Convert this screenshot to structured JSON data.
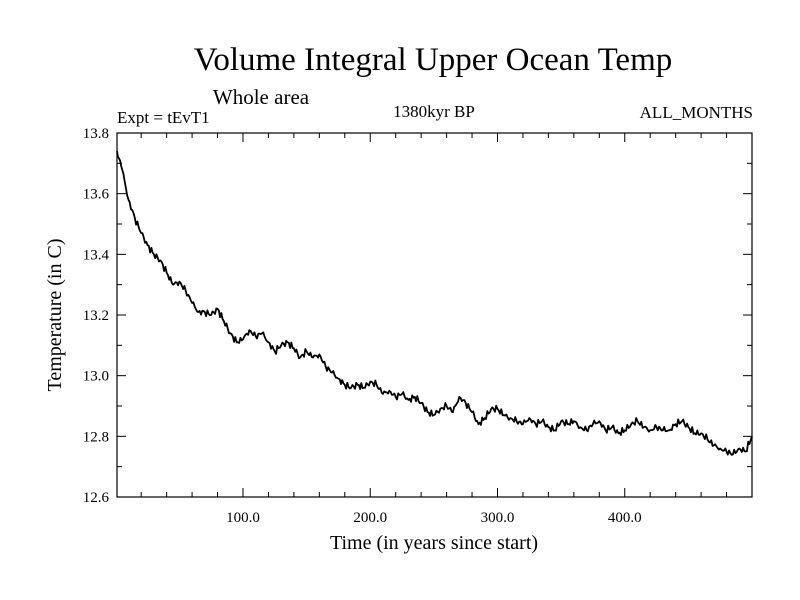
{
  "chart_data": {
    "type": "line",
    "title": "Volume Integral Upper Ocean Temp",
    "subtitle": "Whole area",
    "left_label": "Expt = tEvT1",
    "center_label": "1380kyr BP",
    "right_label": "ALL_MONTHS",
    "xlabel": "Time (in years since start)",
    "ylabel": "Temperature (in C)",
    "xlim": [
      1,
      500
    ],
    "ylim": [
      12.6,
      13.8
    ],
    "x_ticks": [
      {
        "value": 100,
        "label": "100.0"
      },
      {
        "value": 200,
        "label": "200.0"
      },
      {
        "value": 300,
        "label": "300.0"
      },
      {
        "value": 400,
        "label": "400.0"
      }
    ],
    "y_ticks": [
      {
        "value": 12.6,
        "label": "12.6"
      },
      {
        "value": 12.8,
        "label": "12.8"
      },
      {
        "value": 13.0,
        "label": "13.0"
      },
      {
        "value": 13.2,
        "label": "13.2"
      },
      {
        "value": 13.4,
        "label": "13.4"
      },
      {
        "value": 13.6,
        "label": "13.6"
      },
      {
        "value": 13.8,
        "label": "13.8"
      }
    ],
    "grid": false,
    "series": [
      {
        "name": "Volume Integral Upper Ocean Temp",
        "x": [
          1,
          5,
          10,
          15,
          20,
          25,
          30,
          35,
          40,
          45,
          50,
          55,
          60,
          65,
          70,
          75,
          80,
          85,
          90,
          95,
          100,
          105,
          110,
          115,
          120,
          125,
          130,
          135,
          140,
          145,
          150,
          155,
          160,
          165,
          170,
          175,
          180,
          185,
          190,
          195,
          200,
          205,
          210,
          215,
          220,
          225,
          230,
          235,
          240,
          245,
          250,
          255,
          260,
          265,
          270,
          275,
          280,
          285,
          290,
          295,
          300,
          305,
          310,
          315,
          320,
          325,
          330,
          335,
          340,
          345,
          350,
          355,
          360,
          365,
          370,
          375,
          380,
          385,
          390,
          395,
          400,
          405,
          410,
          415,
          420,
          425,
          430,
          435,
          440,
          445,
          450,
          455,
          460,
          465,
          470,
          475,
          480,
          485,
          490,
          495,
          500
        ],
        "values": [
          13.74,
          13.68,
          13.58,
          13.52,
          13.47,
          13.43,
          13.4,
          13.38,
          13.34,
          13.3,
          13.31,
          13.28,
          13.24,
          13.21,
          13.21,
          13.2,
          13.22,
          13.18,
          13.14,
          13.11,
          13.12,
          13.15,
          13.13,
          13.14,
          13.11,
          13.08,
          13.1,
          13.11,
          13.09,
          13.06,
          13.08,
          13.06,
          13.07,
          13.03,
          13.01,
          12.99,
          12.97,
          12.96,
          12.97,
          12.96,
          12.98,
          12.97,
          12.94,
          12.95,
          12.93,
          12.94,
          12.92,
          12.93,
          12.91,
          12.88,
          12.87,
          12.89,
          12.9,
          12.88,
          12.93,
          12.91,
          12.88,
          12.84,
          12.86,
          12.89,
          12.89,
          12.87,
          12.86,
          12.85,
          12.84,
          12.86,
          12.84,
          12.85,
          12.83,
          12.82,
          12.85,
          12.84,
          12.85,
          12.83,
          12.82,
          12.84,
          12.85,
          12.82,
          12.83,
          12.81,
          12.82,
          12.84,
          12.85,
          12.83,
          12.82,
          12.83,
          12.82,
          12.82,
          12.84,
          12.85,
          12.83,
          12.81,
          12.81,
          12.79,
          12.77,
          12.76,
          12.75,
          12.74,
          12.76,
          12.75,
          12.8
        ]
      }
    ]
  }
}
